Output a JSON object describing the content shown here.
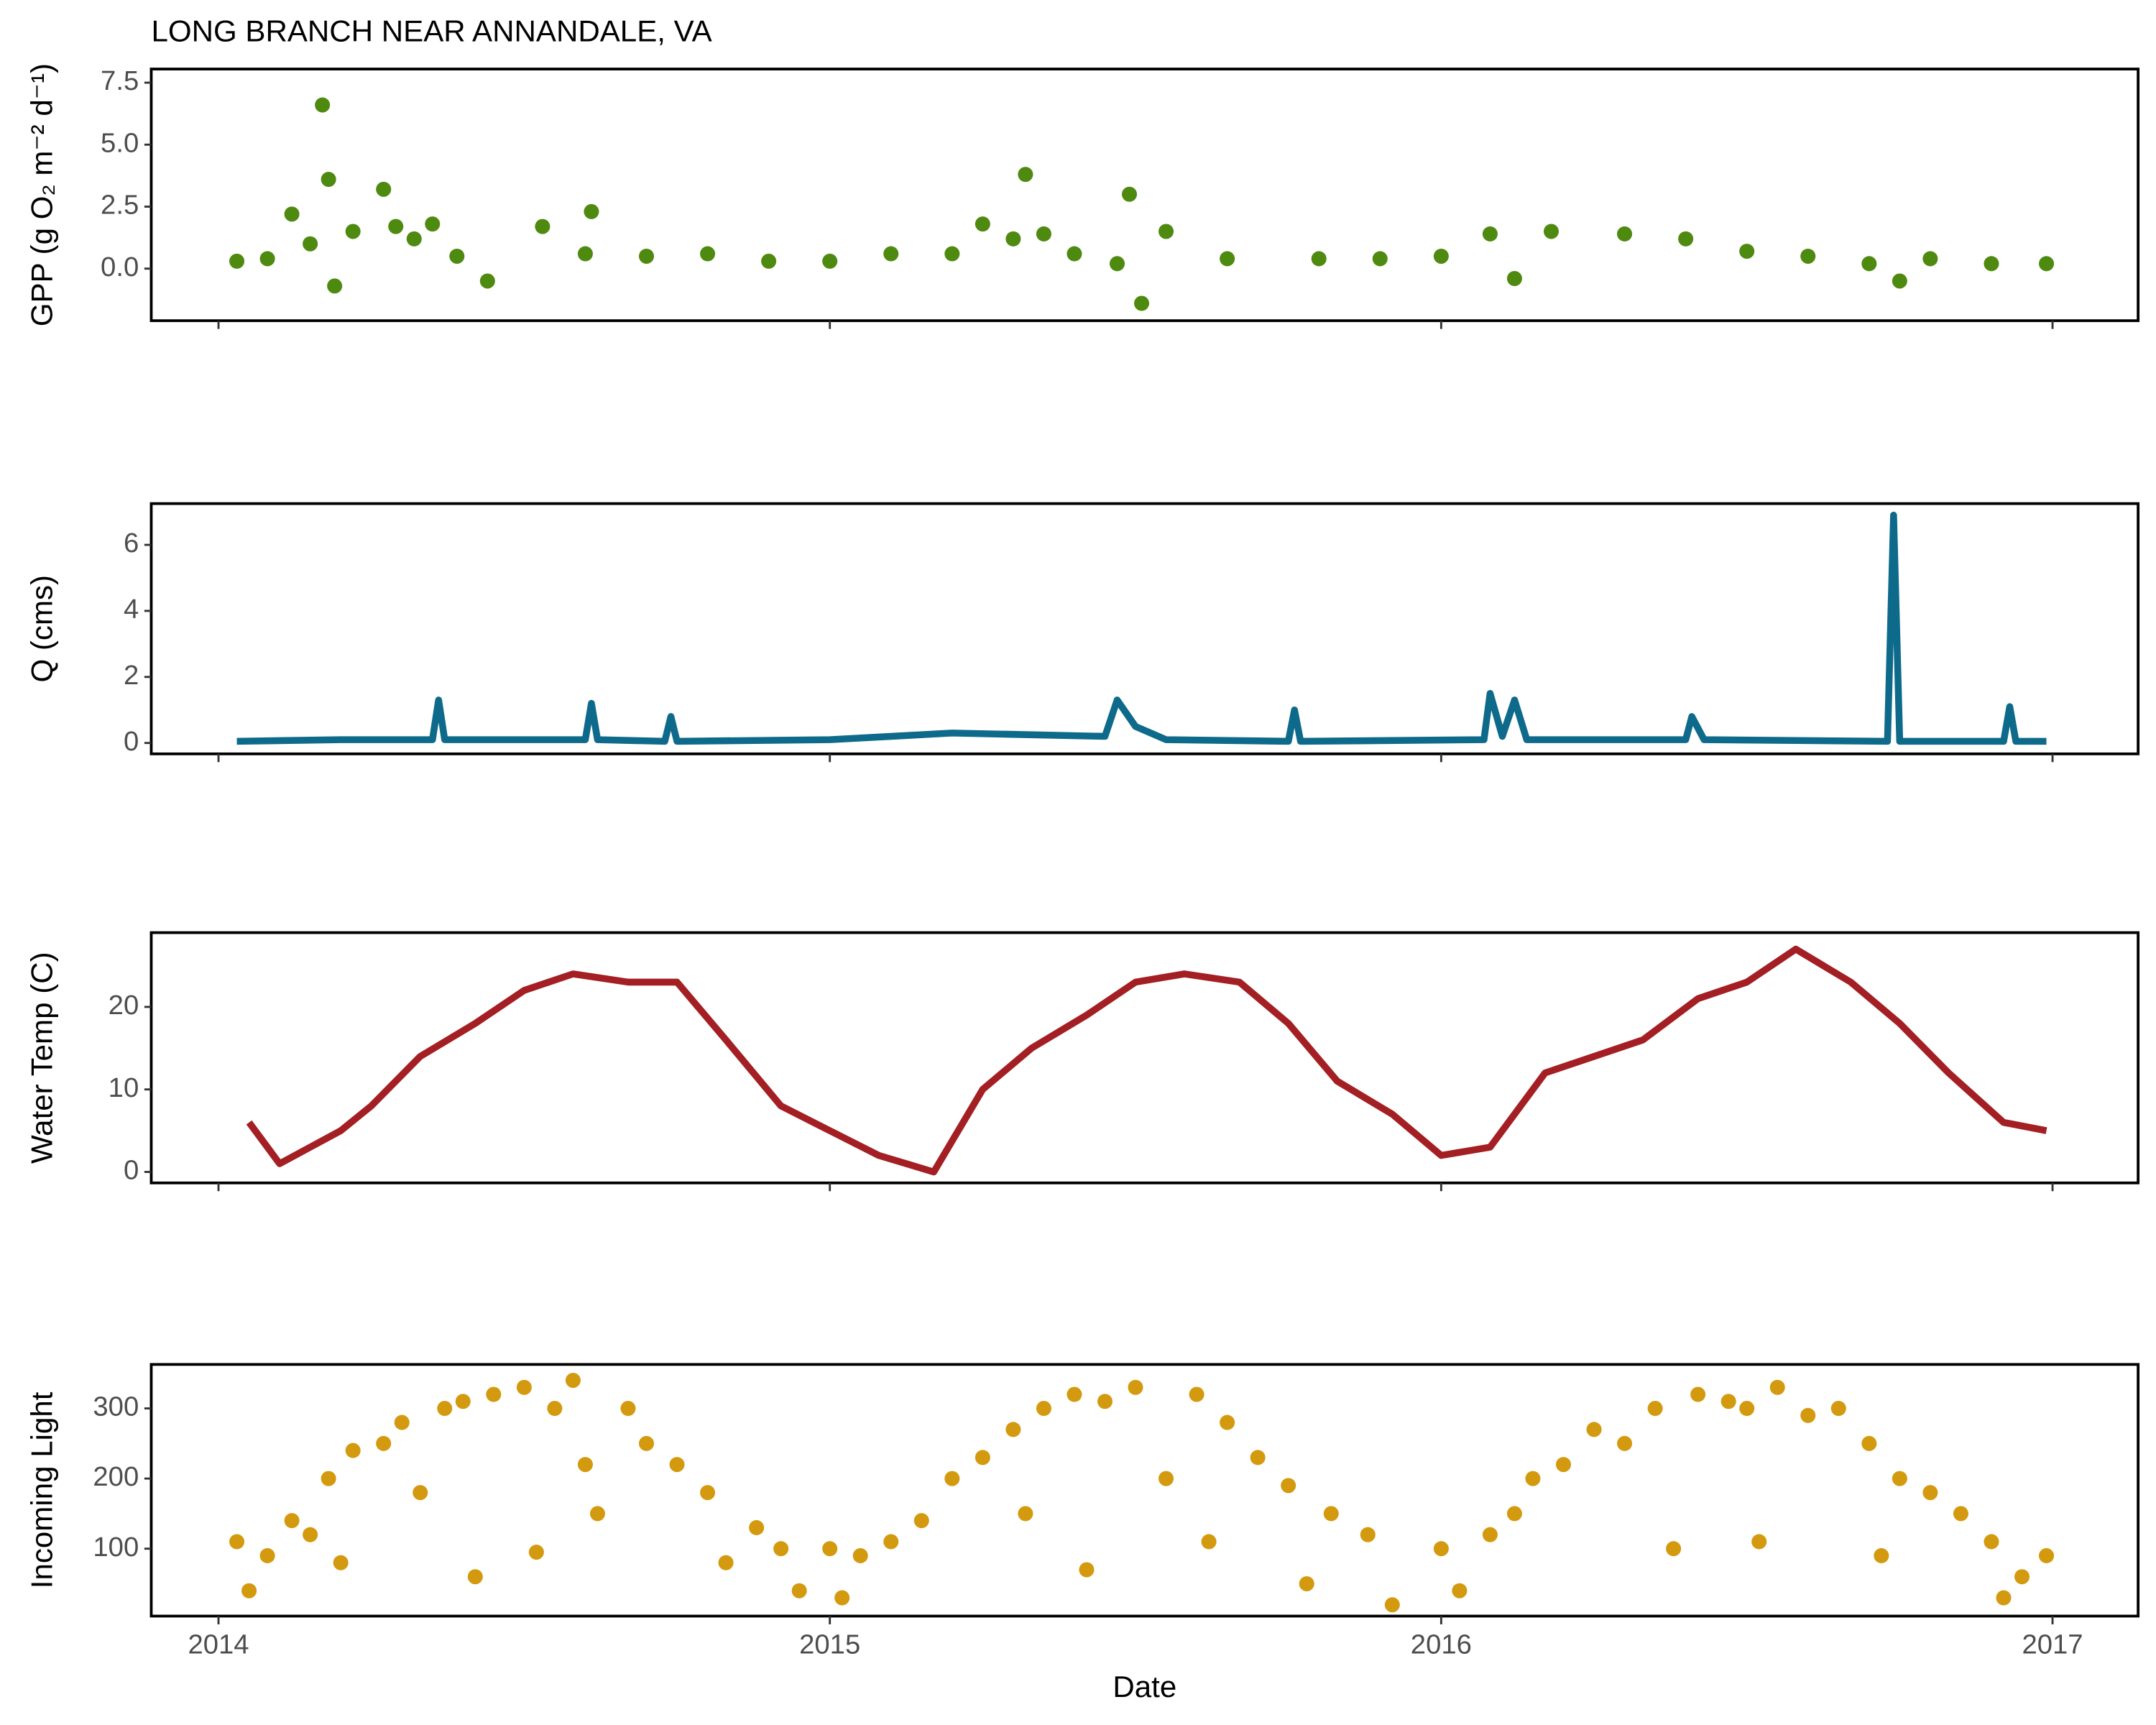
{
  "chart_data": [
    {
      "type": "scatter",
      "title": "LONG BRANCH NEAR ANNANDALE, VA",
      "y_label": "GPP (g  O₂ m⁻² d⁻¹)",
      "color": "#4f8a10",
      "x": [
        2014.03,
        2014.08,
        2014.12,
        2014.15,
        2014.17,
        2014.18,
        2014.19,
        2014.22,
        2014.27,
        2014.29,
        2014.32,
        2014.35,
        2014.39,
        2014.44,
        2014.53,
        2014.6,
        2014.61,
        2014.7,
        2014.8,
        2014.9,
        2015.0,
        2015.1,
        2015.2,
        2015.25,
        2015.3,
        2015.32,
        2015.35,
        2015.4,
        2015.47,
        2015.49,
        2015.51,
        2015.55,
        2015.65,
        2015.8,
        2015.9,
        2016.0,
        2016.08,
        2016.12,
        2016.18,
        2016.3,
        2016.4,
        2016.5,
        2016.6,
        2016.7,
        2016.75,
        2016.8,
        2016.9,
        2016.99
      ],
      "values": [
        0.3,
        0.4,
        2.2,
        1.0,
        6.6,
        3.6,
        -0.7,
        1.5,
        3.2,
        1.7,
        1.2,
        1.8,
        0.5,
        -0.5,
        1.7,
        0.6,
        2.3,
        0.5,
        0.6,
        0.3,
        0.3,
        0.6,
        0.6,
        1.8,
        1.2,
        3.8,
        1.4,
        0.6,
        0.2,
        3.0,
        -1.4,
        1.5,
        0.4,
        0.4,
        0.4,
        0.5,
        1.4,
        -0.4,
        1.5,
        1.4,
        1.2,
        0.7,
        0.5,
        0.2,
        -0.5,
        0.4,
        0.2,
        0.2
      ],
      "xlim": [
        2013.89,
        2017.14
      ],
      "xticks": [
        2014,
        2015,
        2016,
        2017
      ],
      "ylim": [
        -2.1,
        8.05
      ],
      "yticks": [
        {
          "value": 0,
          "label": "0.0"
        },
        {
          "value": 2.5,
          "label": "2.5"
        },
        {
          "value": 5,
          "label": "5.0"
        },
        {
          "value": 7.5,
          "label": "7.5"
        }
      ]
    },
    {
      "type": "line",
      "y_label": "Q (cms)",
      "color": "#0e6a8a",
      "x": [
        2014.03,
        2014.2,
        2014.35,
        2014.36,
        2014.37,
        2014.6,
        2014.61,
        2014.62,
        2014.73,
        2014.74,
        2014.75,
        2015.0,
        2015.2,
        2015.45,
        2015.47,
        2015.5,
        2015.55,
        2015.75,
        2015.76,
        2015.77,
        2016.07,
        2016.08,
        2016.1,
        2016.12,
        2016.14,
        2016.4,
        2016.41,
        2016.43,
        2016.73,
        2016.74,
        2016.75,
        2016.92,
        2016.93,
        2016.94,
        2016.99
      ],
      "values": [
        0.05,
        0.1,
        0.1,
        1.3,
        0.1,
        0.1,
        1.2,
        0.1,
        0.05,
        0.8,
        0.05,
        0.1,
        0.3,
        0.2,
        1.3,
        0.5,
        0.1,
        0.05,
        1.0,
        0.05,
        0.1,
        1.5,
        0.2,
        1.3,
        0.1,
        0.1,
        0.8,
        0.1,
        0.05,
        6.9,
        0.05,
        0.05,
        1.1,
        0.05,
        0.05
      ],
      "xlim": [
        2013.89,
        2017.14
      ],
      "xticks": [
        2014,
        2015,
        2016,
        2017
      ],
      "ylim": [
        -0.33,
        7.25
      ],
      "yticks": [
        0,
        2,
        4,
        6
      ]
    },
    {
      "type": "line",
      "y_label": "Water Temp (C)",
      "color": "#a31f24",
      "x": [
        2014.05,
        2014.1,
        2014.15,
        2014.2,
        2014.25,
        2014.33,
        2014.42,
        2014.5,
        2014.58,
        2014.67,
        2014.75,
        2014.83,
        2014.92,
        2015.0,
        2015.08,
        2015.17,
        2015.25,
        2015.33,
        2015.42,
        2015.5,
        2015.58,
        2015.67,
        2015.75,
        2015.83,
        2015.92,
        2016.0,
        2016.08,
        2016.17,
        2016.25,
        2016.33,
        2016.42,
        2016.5,
        2016.58,
        2016.67,
        2016.75,
        2016.83,
        2016.92,
        2016.99
      ],
      "values": [
        6,
        1,
        3,
        5,
        8,
        14,
        18,
        22,
        24,
        23,
        23,
        16,
        8,
        5,
        2,
        0,
        10,
        15,
        19,
        23,
        24,
        23,
        18,
        11,
        7,
        2,
        3,
        12,
        14,
        16,
        21,
        23,
        27,
        23,
        18,
        12,
        6,
        5
      ],
      "xlim": [
        2013.89,
        2017.14
      ],
      "xticks": [
        2014,
        2015,
        2016,
        2017
      ],
      "ylim": [
        -1.33,
        29
      ],
      "yticks": [
        0,
        10,
        20
      ]
    },
    {
      "type": "scatter",
      "y_label": "Incoming Light",
      "x_label": "Date",
      "color": "#d49a0f",
      "x": [
        2014.03,
        2014.05,
        2014.08,
        2014.12,
        2014.15,
        2014.18,
        2014.2,
        2014.22,
        2014.27,
        2014.3,
        2014.33,
        2014.37,
        2014.4,
        2014.42,
        2014.45,
        2014.5,
        2014.52,
        2014.55,
        2014.58,
        2014.6,
        2014.62,
        2014.67,
        2014.7,
        2014.75,
        2014.8,
        2014.83,
        2014.88,
        2014.92,
        2014.95,
        2015.0,
        2015.02,
        2015.05,
        2015.1,
        2015.15,
        2015.2,
        2015.25,
        2015.3,
        2015.32,
        2015.35,
        2015.4,
        2015.42,
        2015.45,
        2015.5,
        2015.55,
        2015.6,
        2015.62,
        2015.65,
        2015.7,
        2015.75,
        2015.78,
        2015.82,
        2015.88,
        2015.92,
        2016.0,
        2016.03,
        2016.08,
        2016.12,
        2016.15,
        2016.2,
        2016.25,
        2016.3,
        2016.35,
        2016.38,
        2016.42,
        2016.47,
        2016.5,
        2016.52,
        2016.55,
        2016.6,
        2016.65,
        2016.7,
        2016.72,
        2016.75,
        2016.8,
        2016.85,
        2016.9,
        2016.92,
        2016.95,
        2016.99
      ],
      "values": [
        110,
        40,
        90,
        140,
        120,
        200,
        80,
        240,
        250,
        280,
        180,
        300,
        310,
        60,
        320,
        330,
        95,
        300,
        340,
        220,
        150,
        300,
        250,
        220,
        180,
        80,
        130,
        100,
        40,
        100,
        30,
        90,
        110,
        140,
        200,
        230,
        270,
        150,
        300,
        320,
        70,
        310,
        330,
        200,
        320,
        110,
        280,
        230,
        190,
        50,
        150,
        120,
        20,
        100,
        40,
        120,
        150,
        200,
        220,
        270,
        250,
        300,
        100,
        320,
        310,
        300,
        110,
        330,
        290,
        300,
        250,
        90,
        200,
        180,
        150,
        110,
        30,
        60,
        90
      ],
      "xlim": [
        2013.89,
        2017.14
      ],
      "xticks": [
        2014,
        2015,
        2016,
        2017
      ],
      "ylim": [
        3.9,
        362.7
      ],
      "yticks": [
        100,
        200,
        300
      ]
    }
  ]
}
